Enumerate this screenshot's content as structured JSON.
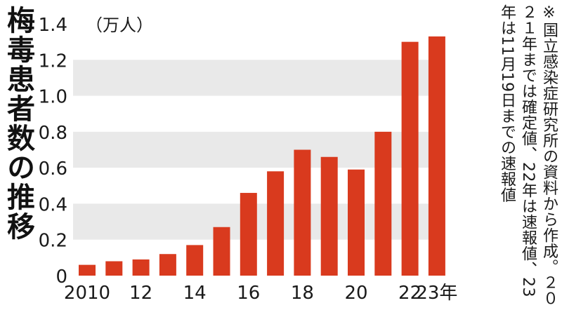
{
  "title": "梅毒患者数の推移",
  "unit_label": "（万人）",
  "note": "※国立感染症研究所の資料から作成。２０２１年までは確定値、22年は速報値、23年は11月19日までの速報値",
  "colors": {
    "bar": "#d93a1e",
    "band": "#e9e9e9",
    "text": "#1a1a1a"
  },
  "chart_data": {
    "type": "bar",
    "title": "梅毒患者数の推移",
    "ylabel": "（万人）",
    "xlabel": "",
    "categories": [
      "2010",
      "2011",
      "2012",
      "2013",
      "2014",
      "2015",
      "2016",
      "2017",
      "2018",
      "2019",
      "2020",
      "2021",
      "2022",
      "2023"
    ],
    "x_tick_labels": [
      "2010",
      "",
      "12",
      "",
      "14",
      "",
      "16",
      "",
      "18",
      "",
      "20",
      "",
      "22",
      "23年"
    ],
    "values": [
      0.06,
      0.08,
      0.09,
      0.12,
      0.17,
      0.27,
      0.46,
      0.58,
      0.7,
      0.66,
      0.59,
      0.8,
      1.3,
      1.33
    ],
    "y_ticks": [
      "0",
      "0.2",
      "0.4",
      "0.6",
      "0.8",
      "1.0",
      "1.2",
      "1.4"
    ],
    "ylim": [
      0,
      1.4
    ],
    "grid": "alternating horizontal bands",
    "legend": "none"
  }
}
